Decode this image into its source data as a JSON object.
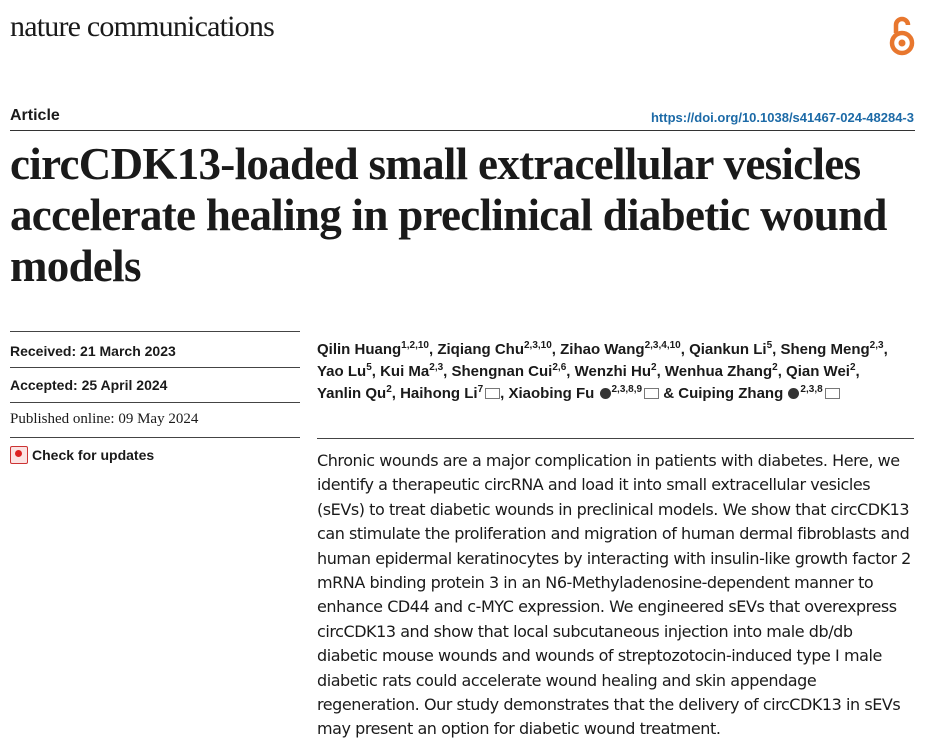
{
  "journal": "nature communications",
  "article_type": "Article",
  "doi": "https://doi.org/10.1038/s41467-024-48284-3",
  "title": "circCDK13-loaded small extracellular vesicles accelerate healing in preclinical diabetic wound models",
  "received": {
    "label": "Received:",
    "value": "21 March 2023"
  },
  "accepted": {
    "label": "Accepted:",
    "value": "25 April 2024"
  },
  "published": "Published online: 09 May 2024",
  "check_updates": "Check for updates",
  "authors": [
    {
      "name": "Qilin Huang",
      "aff": "1,2,10"
    },
    {
      "name": "Ziqiang Chu",
      "aff": "2,3,10"
    },
    {
      "name": "Zihao Wang",
      "aff": "2,3,4,10"
    },
    {
      "name": "Qiankun Li",
      "aff": "5"
    },
    {
      "name": "Sheng Meng",
      "aff": "2,3"
    },
    {
      "name": "Yao Lu",
      "aff": "5"
    },
    {
      "name": "Kui Ma",
      "aff": "2,3"
    },
    {
      "name": "Shengnan Cui",
      "aff": "2,6"
    },
    {
      "name": "Wenzhi Hu",
      "aff": "2"
    },
    {
      "name": "Wenhua Zhang",
      "aff": "2"
    },
    {
      "name": "Qian Wei",
      "aff": "2"
    },
    {
      "name": "Yanlin Qu",
      "aff": "2"
    },
    {
      "name": "Haihong Li",
      "aff": "7"
    },
    {
      "name": "Xiaobing Fu",
      "aff": "2,3,8,9"
    },
    {
      "name": "Cuiping Zhang",
      "aff": "2,3,8"
    }
  ],
  "abstract": "Chronic wounds are a major complication in patients with diabetes. Here, we identify a therapeutic circRNA and load it into small extracellular vesicles (sEVs) to treat diabetic wounds in preclinical models. We show that circCDK13 can stimulate the proliferation and migration of human dermal fibroblasts and human epidermal keratinocytes by interacting with insulin-like growth factor 2 mRNA binding protein 3 in an N6-Methyladenosine-dependent manner to enhance CD44 and c-MYC expression. We engineered sEVs that overexpress circCDK13 and show that local subcutaneous injection into male db/db diabetic mouse wounds and wounds of streptozotocin-induced type I male diabetic rats could accelerate wound healing and skin appendage regeneration. Our study demonstrates that the delivery of circCDK13 in sEVs may present an option for diabetic wound treatment.",
  "colors": {
    "doi": "#1c6aa7",
    "open_access_icon": "#e8772e"
  }
}
